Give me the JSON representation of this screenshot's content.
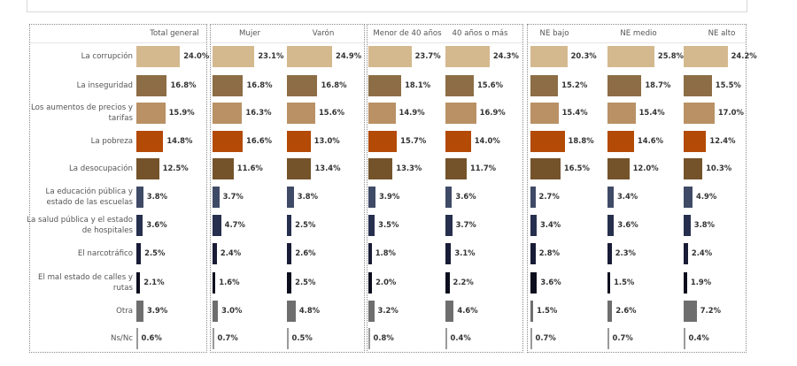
{
  "chart_data": {
    "type": "bar",
    "orientation": "horizontal",
    "unit": "%",
    "categories": [
      "La corrupción",
      "La inseguridad",
      "Los aumentos de precios y tarifas",
      "La pobreza",
      "La desocupación",
      "La educación pública y estado de las escuelas",
      "La salud pública y el estado de hospitales",
      "El narcotráfico",
      "El mal estado de calles y rutas",
      "Otra",
      "Ns/Nc"
    ],
    "category_colors": [
      "#d4b98f",
      "#8c6d45",
      "#b99164",
      "#b34a05",
      "#74532a",
      "#3f4a66",
      "#262f4d",
      "#181c36",
      "#0c0e1e",
      "#6e6e6e",
      "#9a9a9a"
    ],
    "groups": [
      {
        "series": [
          {
            "name": "Total general",
            "values": [
              24.0,
              16.8,
              15.9,
              14.8,
              12.5,
              3.8,
              3.6,
              2.5,
              2.1,
              3.9,
              0.6
            ]
          }
        ]
      },
      {
        "series": [
          {
            "name": "Mujer",
            "values": [
              23.1,
              16.8,
              16.3,
              16.6,
              11.6,
              3.7,
              4.7,
              2.4,
              1.6,
              3.0,
              0.7
            ]
          },
          {
            "name": "Varón",
            "values": [
              24.9,
              16.8,
              15.6,
              13.0,
              13.4,
              3.8,
              2.5,
              2.6,
              2.5,
              4.8,
              0.5
            ]
          }
        ]
      },
      {
        "series": [
          {
            "name": "Menor de 40 años",
            "values": [
              23.7,
              18.1,
              14.9,
              15.7,
              13.3,
              3.9,
              3.5,
              1.8,
              2.0,
              3.2,
              0.8
            ]
          },
          {
            "name": "40 años o más",
            "values": [
              24.3,
              15.6,
              16.9,
              14.0,
              11.7,
              3.6,
              3.7,
              3.1,
              2.2,
              4.6,
              0.4
            ]
          }
        ]
      },
      {
        "series": [
          {
            "name": "NE bajo",
            "values": [
              20.3,
              15.2,
              15.4,
              18.8,
              16.5,
              2.7,
              3.4,
              2.8,
              3.6,
              1.5,
              0.7
            ]
          },
          {
            "name": "NE medio",
            "values": [
              25.8,
              18.7,
              15.4,
              14.6,
              12.0,
              3.4,
              3.6,
              2.3,
              1.5,
              2.6,
              0.7
            ]
          },
          {
            "name": "NE alto",
            "values": [
              24.2,
              15.5,
              17.0,
              12.4,
              10.3,
              4.9,
              3.8,
              2.4,
              1.9,
              7.2,
              0.4
            ]
          }
        ]
      }
    ]
  }
}
